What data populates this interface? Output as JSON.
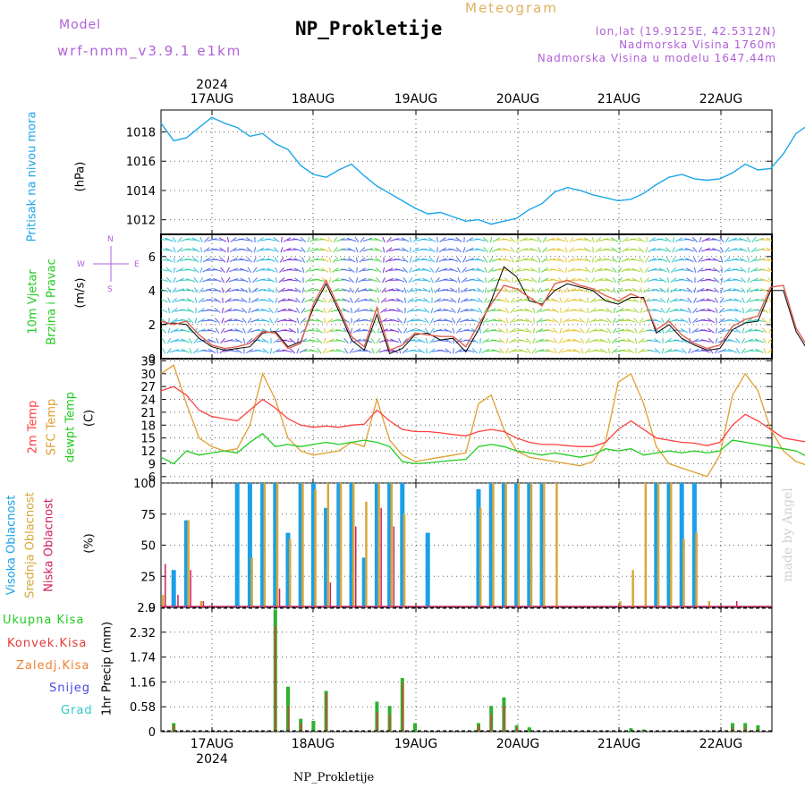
{
  "header": {
    "model_label": "Model",
    "model_name": "wrf-nmm_v3.9.1  e1km",
    "station": "NP_Prokletije",
    "meteogram_label": "Meteogram",
    "lonlat": "lon,lat (19.9125E, 42.5312N)",
    "elevation": "Nadmorska Visina 1760m",
    "model_elevation": "Nadmorska Visina u modelu 1647.44m"
  },
  "footer": {
    "station": "NP_Prokletije",
    "watermark": "made by Angel",
    "year": "2024"
  },
  "days": [
    "17AUG",
    "18AUG",
    "19AUG",
    "20AUG",
    "21AUG",
    "22AUG"
  ],
  "panels": {
    "pressure": {
      "label": "Pritisak na nivou mora",
      "unit": "(hPa)",
      "ticks": [
        "1012",
        "1014",
        "1016",
        "1018"
      ]
    },
    "wind": {
      "label1": "10m Vjetar",
      "label2": "Brzina i Pravac",
      "unit": "(m/s)",
      "ticks": [
        "0",
        "2",
        "4",
        "6"
      ],
      "compass_n": "N",
      "compass_w": "W",
      "compass_e": "E",
      "compass_s": "S"
    },
    "temp": {
      "label1": "2m Temp",
      "label2": "SFC Temp",
      "label3": "dewpt Temp",
      "unit": "(C)",
      "ticks": [
        "6",
        "9",
        "12",
        "15",
        "18",
        "21",
        "24",
        "27",
        "30",
        "33"
      ]
    },
    "cloud": {
      "label1": "Visoka Oblacnost",
      "label2": "Srednja Oblacnost",
      "label3": "Niska Oblacnost",
      "unit": "(%)",
      "ticks": [
        "0",
        "25",
        "50",
        "75",
        "100"
      ]
    },
    "precip": {
      "labels": [
        "Ukupna Kisa",
        "Konvek.Kisa",
        "Zaledj.Kisa",
        "Snijeg",
        "Grad"
      ],
      "unit": "1hr Precip (mm)",
      "ticks": [
        "0",
        "0.58",
        "1.16",
        "1.74",
        "2.32",
        "2.9"
      ]
    }
  },
  "colors": {
    "pressure": "#1ba6e8",
    "temp2m": "#ff4040",
    "sfc": "#e0a030",
    "dewpt": "#20cc20",
    "high_cloud": "#1aa0e8",
    "mid_cloud": "#d8a838",
    "low_cloud": "#d02060",
    "total_rain": "#30b030",
    "conv_rain": "#e83838",
    "frz_rain": "#f08030",
    "snow": "#4848e0",
    "hail": "#30c8c8",
    "wind_fast": "#c02040",
    "wind_slow": "#7020d0"
  },
  "chart_data": [
    {
      "type": "line",
      "title": "Pritisak na nivou mora",
      "ylabel": "(hPa)",
      "ylim": [
        1011,
        1019.5
      ],
      "x_start": "2024-08-16 12:00",
      "x_step_hours": 3,
      "series": [
        {
          "name": "Pritisak na nivou mora",
          "values": [
            1018.6,
            1017.4,
            1017.6,
            1018.3,
            1019.0,
            1018.6,
            1018.3,
            1017.7,
            1017.9,
            1017.2,
            1016.8,
            1015.7,
            1015.1,
            1014.9,
            1015.4,
            1015.8,
            1015.0,
            1014.3,
            1013.8,
            1013.3,
            1012.8,
            1012.4,
            1012.5,
            1012.2,
            1011.9,
            1012.0,
            1011.7,
            1011.9,
            1012.1,
            1012.7,
            1013.1,
            1013.9,
            1014.2,
            1014.0,
            1013.7,
            1013.5,
            1013.3,
            1013.4,
            1013.8,
            1014.4,
            1014.9,
            1015.1,
            1014.8,
            1014.7,
            1014.8,
            1015.2,
            1015.8,
            1015.4,
            1015.5,
            1016.5,
            1017.9,
            1018.5,
            1018.8,
            1018.6,
            1019.1,
            1018.7,
            1018.3,
            1017.6,
            1018.1
          ]
        }
      ]
    },
    {
      "type": "line",
      "title": "10m Vjetar Brzina i Pravac",
      "ylabel": "(m/s)",
      "ylim": [
        0,
        7.3
      ],
      "x_start": "2024-08-16 12:00",
      "x_step_hours": 3,
      "series": [
        {
          "name": "Brzina",
          "values": [
            2.2,
            2.0,
            2.2,
            1.4,
            0.8,
            0.6,
            0.7,
            0.9,
            1.6,
            1.5,
            0.6,
            0.9,
            3.2,
            4.6,
            3.0,
            1.3,
            0.7,
            3.0,
            0.5,
            0.8,
            1.5,
            1.4,
            1.3,
            1.3,
            0.7,
            2.0,
            3.2,
            4.3,
            4.1,
            3.6,
            3.1,
            4.4,
            4.6,
            4.3,
            4.1,
            3.7,
            3.4,
            3.8,
            3.5,
            1.7,
            2.2,
            1.4,
            0.9,
            0.6,
            0.8,
            1.9,
            2.3,
            2.5,
            4.2,
            4.3,
            1.8,
            0.6,
            0.9,
            1.2,
            0.6,
            1.0,
            3.1,
            5.1,
            5.8
          ]
        },
        {
          "name": "Brzina (model)",
          "values": [
            2.0,
            2.1,
            2.0,
            1.2,
            0.7,
            0.5,
            0.6,
            0.7,
            1.5,
            1.6,
            0.7,
            1.0,
            3.0,
            4.4,
            2.8,
            1.1,
            0.5,
            2.6,
            0.3,
            0.6,
            1.4,
            1.5,
            1.1,
            1.2,
            0.4,
            1.7,
            3.4,
            5.4,
            4.8,
            3.4,
            3.2,
            4.0,
            4.4,
            4.2,
            4.0,
            3.4,
            3.2,
            3.6,
            3.6,
            1.5,
            2.0,
            1.2,
            0.8,
            0.5,
            0.6,
            1.7,
            2.1,
            2.2,
            4.0,
            4.0,
            1.6,
            0.4,
            0.6,
            1.0,
            0.4,
            0.8,
            2.9,
            4.9,
            5.6
          ]
        }
      ]
    },
    {
      "type": "line",
      "title": "2m Temp / SFC Temp / dewpt Temp",
      "ylabel": "(C)",
      "ylim": [
        4.5,
        33.5
      ],
      "x_start": "2024-08-16 12:00",
      "x_step_hours": 3,
      "series": [
        {
          "name": "2m Temp",
          "values": [
            26.0,
            27.0,
            25.0,
            21.5,
            20.0,
            19.5,
            19.0,
            21.5,
            24.0,
            22.0,
            19.5,
            18.0,
            17.5,
            17.8,
            17.5,
            18.0,
            18.2,
            21.5,
            19.0,
            17.0,
            16.5,
            16.5,
            16.2,
            15.8,
            15.5,
            16.5,
            17.0,
            16.5,
            15.0,
            14.0,
            13.5,
            13.5,
            13.2,
            13.0,
            13.0,
            14.0,
            17.0,
            19.0,
            17.0,
            15.0,
            14.5,
            14.0,
            13.8,
            13.2,
            14.0,
            18.0,
            20.5,
            19.0,
            17.0,
            15.0,
            14.5,
            14.0,
            13.5,
            13.0,
            13.5,
            14.5,
            17.5,
            21.0,
            19.0
          ]
        },
        {
          "name": "SFC Temp",
          "values": [
            30.0,
            32.0,
            23.0,
            15.0,
            13.0,
            12.0,
            12.5,
            18.0,
            30.0,
            24.0,
            15.0,
            12.0,
            11.0,
            11.5,
            12.0,
            14.0,
            13.0,
            24.0,
            14.5,
            11.0,
            9.5,
            10.0,
            10.5,
            11.0,
            11.5,
            23.0,
            25.0,
            17.0,
            12.0,
            10.5,
            10.0,
            9.5,
            9.0,
            8.5,
            9.5,
            14.0,
            28.0,
            30.0,
            23.0,
            13.0,
            9.0,
            8.0,
            7.0,
            6.0,
            11.0,
            25.0,
            30.0,
            26.0,
            17.0,
            12.0,
            9.5,
            8.5,
            9.5,
            10.5,
            12.5,
            13.5,
            22.0,
            28.0,
            24.0
          ]
        },
        {
          "name": "dewpt Temp",
          "values": [
            10.5,
            9.0,
            12.0,
            11.0,
            11.5,
            12.0,
            11.5,
            14.0,
            16.0,
            13.0,
            13.5,
            13.0,
            13.5,
            14.0,
            13.5,
            14.0,
            14.5,
            14.0,
            13.0,
            9.5,
            9.0,
            9.2,
            9.5,
            9.8,
            10.0,
            13.0,
            13.5,
            13.0,
            12.0,
            11.5,
            11.0,
            11.5,
            11.0,
            10.5,
            11.0,
            12.5,
            12.0,
            12.5,
            11.0,
            11.5,
            12.0,
            11.5,
            12.0,
            11.5,
            12.0,
            14.5,
            14.0,
            13.5,
            13.0,
            12.5,
            12.0,
            10.5,
            9.5,
            12.0,
            12.5,
            13.0,
            14.0,
            14.5,
            13.5
          ]
        }
      ]
    },
    {
      "type": "bar",
      "title": "Visoka / Srednja / Niska Oblacnost",
      "ylabel": "(%)",
      "ylim": [
        0,
        100
      ],
      "x_start": "2024-08-16 12:00",
      "x_step_hours": 3,
      "series": [
        {
          "name": "Visoka Oblacnost",
          "values": [
            0,
            30,
            70,
            0,
            0,
            0,
            100,
            100,
            100,
            100,
            60,
            100,
            100,
            80,
            100,
            100,
            40,
            100,
            100,
            100,
            0,
            60,
            0,
            0,
            0,
            95,
            100,
            100,
            100,
            100,
            100,
            0,
            0,
            0,
            0,
            0,
            0,
            0,
            0,
            100,
            100,
            100,
            100,
            0,
            0,
            0,
            0,
            0,
            0,
            0,
            0,
            0,
            0,
            0,
            0,
            0,
            0,
            0,
            0
          ]
        },
        {
          "name": "Srednja Oblacnost",
          "values": [
            10,
            0,
            70,
            5,
            0,
            0,
            0,
            40,
            100,
            100,
            55,
            100,
            95,
            100,
            100,
            100,
            85,
            100,
            100,
            75,
            0,
            0,
            0,
            0,
            0,
            80,
            100,
            100,
            100,
            100,
            100,
            100,
            0,
            0,
            0,
            0,
            5,
            30,
            100,
            100,
            100,
            55,
            60,
            5,
            0,
            0,
            0,
            0,
            30,
            40,
            0,
            30,
            0,
            0,
            0,
            0,
            0,
            0,
            0
          ]
        },
        {
          "name": "Niska Oblacnost",
          "values": [
            35,
            10,
            30,
            5,
            0,
            0,
            0,
            0,
            0,
            15,
            0,
            0,
            0,
            20,
            0,
            65,
            0,
            80,
            65,
            0,
            0,
            0,
            0,
            0,
            0,
            0,
            0,
            0,
            0,
            0,
            0,
            0,
            0,
            0,
            0,
            0,
            0,
            0,
            0,
            0,
            0,
            0,
            0,
            0,
            0,
            5,
            0,
            0,
            0,
            0,
            60,
            60,
            45,
            10,
            0,
            20,
            0,
            20,
            20
          ]
        }
      ]
    },
    {
      "type": "bar",
      "title": "1hr Precip",
      "ylabel": "1hr Precip (mm)",
      "ylim": [
        0,
        2.9
      ],
      "x_start": "2024-08-16 12:00",
      "x_step_hours": 3,
      "series": [
        {
          "name": "Ukupna Kisa",
          "values": [
            0.2,
            0.2,
            0,
            0,
            0,
            0,
            0,
            0,
            0,
            2.85,
            1.05,
            0.3,
            0.25,
            0.95,
            0,
            0,
            0,
            0.7,
            0.6,
            1.25,
            0.2,
            0,
            0,
            0,
            0,
            0.2,
            0.6,
            0.8,
            0.15,
            0.1,
            0,
            0,
            0,
            0,
            0,
            0,
            0,
            0.08,
            0.05,
            0,
            0,
            0,
            0,
            0,
            0,
            0.2,
            0.2,
            0.15,
            0,
            0,
            0,
            0,
            0,
            0,
            0,
            0,
            0,
            0,
            0
          ]
        },
        {
          "name": "Konvek.Kisa",
          "values": [
            0,
            0.15,
            0,
            0,
            0,
            0,
            0,
            0,
            0,
            2.45,
            0.6,
            0.2,
            0,
            0.9,
            0,
            0,
            0,
            0.45,
            0.4,
            1.15,
            0,
            0,
            0,
            0,
            0,
            0.15,
            0.4,
            0.6,
            0.1,
            0,
            0,
            0,
            0,
            0,
            0,
            0,
            0,
            0,
            0,
            0,
            0,
            0,
            0,
            0,
            0,
            0.1,
            0.1,
            0.05,
            0,
            0,
            0,
            0,
            0,
            0,
            0,
            0,
            0,
            0,
            0
          ]
        }
      ]
    }
  ]
}
